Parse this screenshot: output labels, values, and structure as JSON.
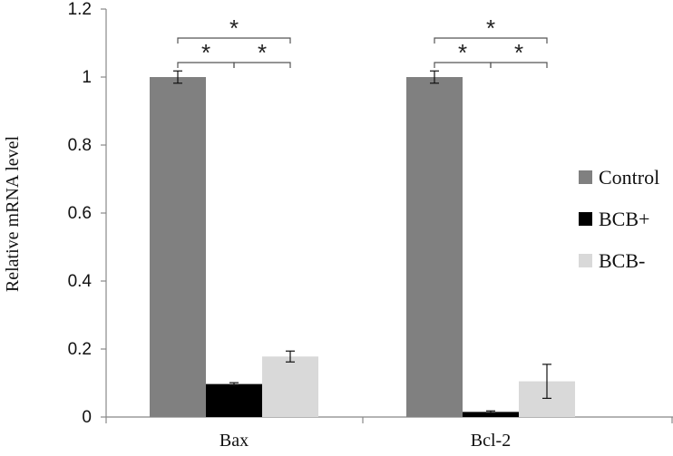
{
  "chart_data": {
    "type": "bar",
    "categories": [
      "Bax",
      "Bcl-2"
    ],
    "series": [
      {
        "name": "Control",
        "values": [
          1.0,
          1.0
        ],
        "errors": [
          0.018,
          0.018
        ],
        "color": "#808080"
      },
      {
        "name": "BCB+",
        "values": [
          0.097,
          0.015
        ],
        "errors": [
          0.004,
          0.003
        ],
        "color": "#000000"
      },
      {
        "name": "BCB-",
        "values": [
          0.178,
          0.105
        ],
        "errors": [
          0.016,
          0.05
        ],
        "color": "#d9d9d9"
      }
    ],
    "ylabel": "Relative mRNA level",
    "xlabel": "",
    "ylim": [
      0,
      1.2
    ],
    "yticks": [
      "0",
      "0.2",
      "0.4",
      "0.6",
      "0.8",
      "1",
      "1.2"
    ],
    "legend_position": "right",
    "grid": false,
    "significance": [
      {
        "category": "Bax",
        "pairs": [
          [
            "Control",
            "BCB+"
          ],
          [
            "BCB+",
            "BCB-"
          ],
          [
            "Control",
            "BCB-"
          ]
        ],
        "marker": "*"
      },
      {
        "category": "Bcl-2",
        "pairs": [
          [
            "Control",
            "BCB+"
          ],
          [
            "BCB+",
            "BCB-"
          ],
          [
            "Control",
            "BCB-"
          ]
        ],
        "marker": "*"
      }
    ]
  }
}
